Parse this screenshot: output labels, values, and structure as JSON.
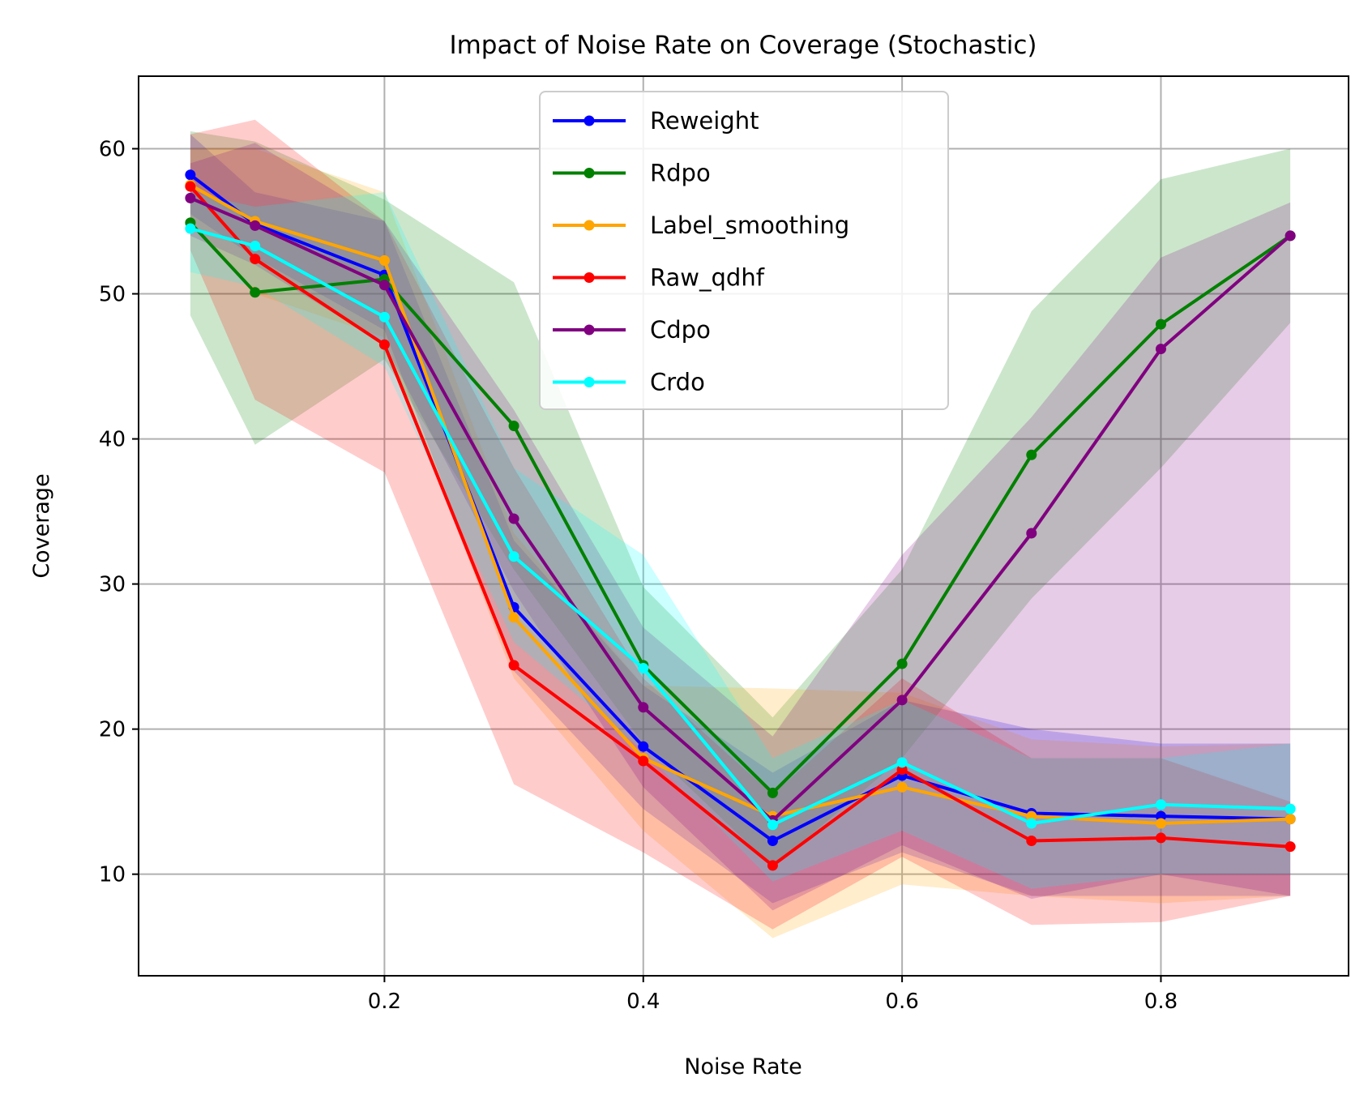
{
  "chart_data": {
    "type": "line",
    "title": "Impact of Noise Rate on Coverage (Stochastic)",
    "xlabel": "Noise Rate",
    "ylabel": "Coverage",
    "xlim": [
      0.01,
      0.945
    ],
    "ylim": [
      3,
      65
    ],
    "xticks": [
      0.2,
      0.4,
      0.6,
      0.8
    ],
    "xtick_labels": [
      "0.2",
      "0.4",
      "0.6",
      "0.8"
    ],
    "yticks": [
      10,
      20,
      30,
      40,
      50,
      60
    ],
    "ytick_labels": [
      "10",
      "20",
      "30",
      "40",
      "50",
      "60"
    ],
    "grid": true,
    "legend_position": "top-center",
    "x": [
      0.05,
      0.1,
      0.2,
      0.3,
      0.4,
      0.5,
      0.6,
      0.7,
      0.8,
      0.9
    ],
    "series": [
      {
        "name": "Reweight",
        "color": "#0000ff",
        "values": [
          58.2,
          54.8,
          51.3,
          28.4,
          18.8,
          12.3,
          16.8,
          14.2,
          14.0,
          13.8
        ],
        "lower": [
          55.5,
          52.5,
          47.5,
          24.0,
          14.5,
          8.0,
          11.5,
          8.5,
          8.5,
          8.5
        ],
        "upper": [
          61.0,
          57.0,
          55.0,
          33.0,
          23.0,
          17.0,
          22.0,
          20.0,
          19.0,
          19.0
        ]
      },
      {
        "name": "Rdpo",
        "color": "#008000",
        "values": [
          54.9,
          50.1,
          51.0,
          40.9,
          24.4,
          15.6,
          24.5,
          38.9,
          47.9,
          54.0
        ],
        "lower": [
          48.5,
          39.6,
          45.5,
          31.0,
          19.0,
          10.5,
          18.0,
          29.0,
          38.0,
          48.0
        ],
        "upper": [
          61.2,
          60.5,
          56.5,
          50.8,
          29.8,
          20.8,
          31.0,
          48.8,
          57.9,
          60.0
        ]
      },
      {
        "name": "Label_smoothing",
        "color": "#ffa500",
        "values": [
          57.5,
          55.0,
          52.3,
          27.7,
          18.0,
          14.0,
          16.0,
          14.0,
          13.5,
          13.8
        ],
        "lower": [
          55.0,
          50.0,
          47.0,
          23.5,
          13.0,
          5.6,
          9.3,
          8.5,
          8.0,
          8.5
        ],
        "upper": [
          60.0,
          60.0,
          57.0,
          33.5,
          23.0,
          22.8,
          22.5,
          19.3,
          18.8,
          19.0
        ]
      },
      {
        "name": "Raw_qdhf",
        "color": "#ff0000",
        "values": [
          57.4,
          52.4,
          46.5,
          24.4,
          17.8,
          10.6,
          17.2,
          12.3,
          12.5,
          11.9
        ],
        "lower": [
          53.0,
          42.7,
          37.7,
          16.2,
          11.5,
          6.2,
          11.2,
          6.5,
          6.7,
          8.5
        ],
        "upper": [
          61.0,
          62.0,
          55.0,
          38.0,
          23.5,
          15.5,
          23.5,
          18.0,
          18.0,
          15.0
        ]
      },
      {
        "name": "Cdpo",
        "color": "#800080",
        "values": [
          56.6,
          54.7,
          50.6,
          34.5,
          21.5,
          13.7,
          22.0,
          33.5,
          46.2,
          54.0
        ],
        "lower": [
          54.0,
          52.0,
          46.5,
          29.5,
          16.0,
          7.5,
          12.0,
          8.3,
          10.0,
          8.5
        ],
        "upper": [
          59.0,
          60.4,
          55.0,
          42.0,
          27.0,
          19.5,
          32.0,
          41.5,
          52.5,
          56.3
        ]
      },
      {
        "name": "Crdo",
        "color": "#00ffff",
        "values": [
          54.5,
          53.3,
          48.4,
          31.9,
          24.2,
          13.4,
          17.7,
          13.5,
          14.8,
          14.5
        ],
        "lower": [
          51.5,
          50.5,
          45.0,
          26.0,
          18.5,
          9.5,
          13.0,
          9.0,
          10.0,
          10.0
        ],
        "upper": [
          57.0,
          56.0,
          57.0,
          38.0,
          32.0,
          18.0,
          22.0,
          18.0,
          18.0,
          19.0
        ]
      }
    ]
  }
}
